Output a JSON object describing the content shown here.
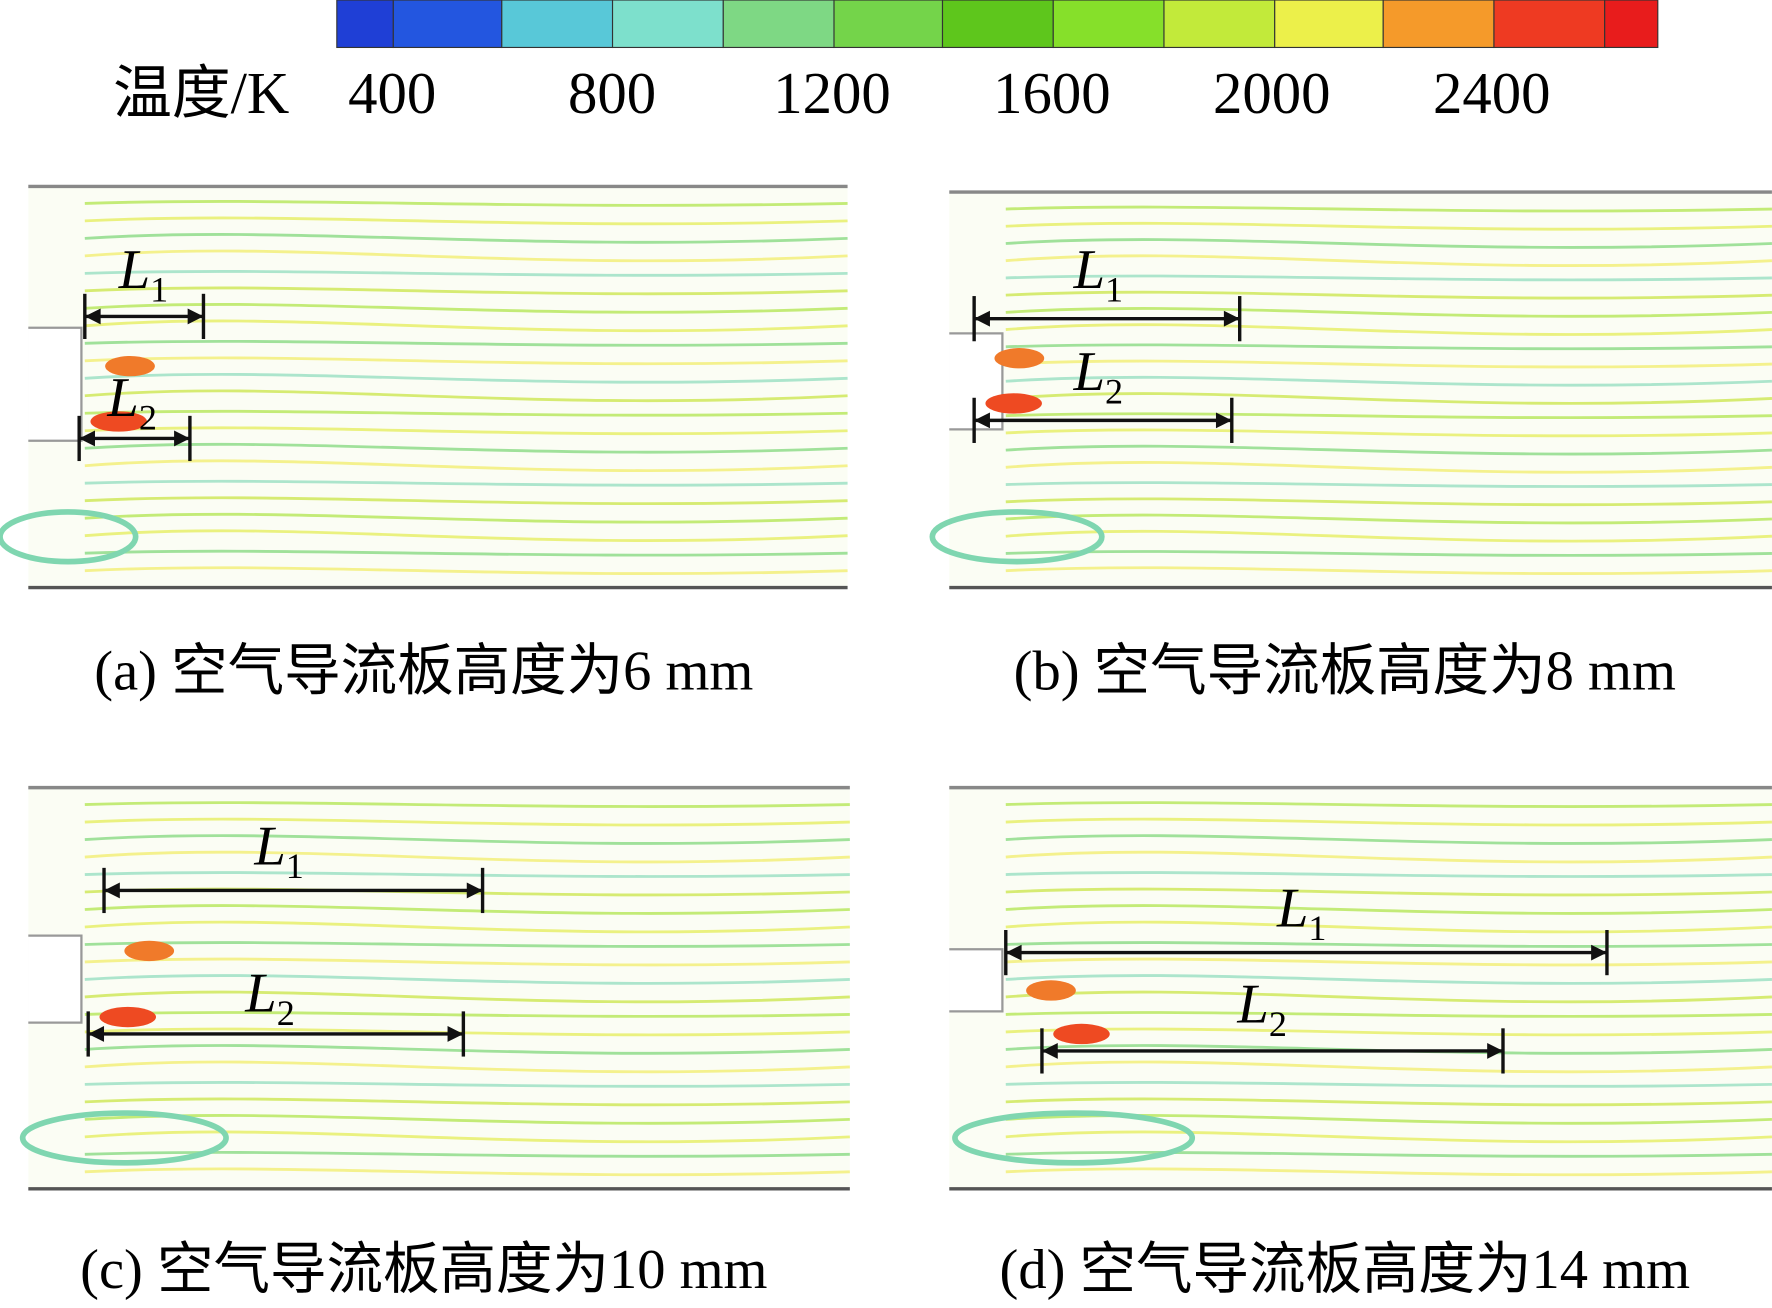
{
  "colorbar": {
    "label": "温度/K",
    "ticks": [
      "400",
      "800",
      "1200",
      "1600",
      "2000",
      "2400"
    ]
  },
  "panels": [
    {
      "caption": "(a) 空气导流板高度为6 mm",
      "L1": {
        "main": "L",
        "sub": "1"
      },
      "L2": {
        "main": "L",
        "sub": "2"
      }
    },
    {
      "caption": "(b) 空气导流板高度为8 mm",
      "L1": {
        "main": "L",
        "sub": "1"
      },
      "L2": {
        "main": "L",
        "sub": "2"
      }
    },
    {
      "caption": "(c) 空气导流板高度为10 mm",
      "L1": {
        "main": "L",
        "sub": "1"
      },
      "L2": {
        "main": "L",
        "sub": "2"
      }
    },
    {
      "caption": "(d) 空气导流板高度为14 mm",
      "L1": {
        "main": "L",
        "sub": "1"
      },
      "L2": {
        "main": "L",
        "sub": "2"
      }
    }
  ]
}
